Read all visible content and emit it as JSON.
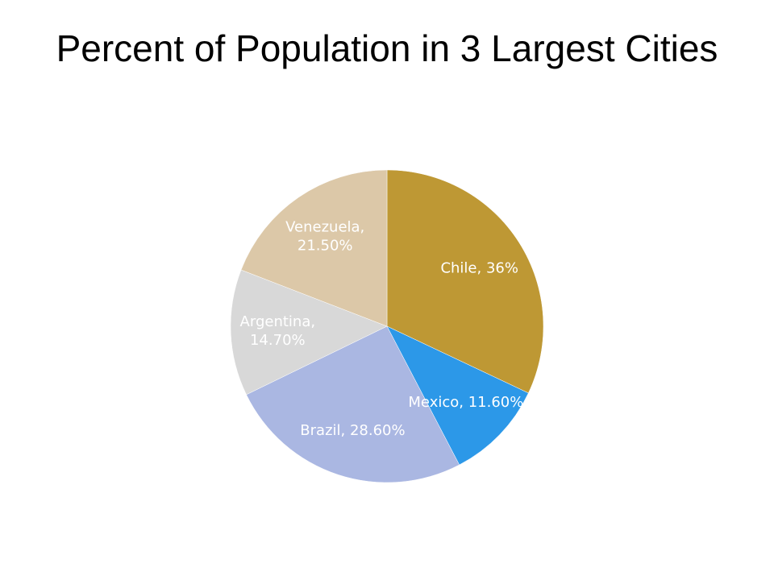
{
  "page": {
    "title": "Percent of Population in 3 Largest Cities"
  },
  "chart_data": {
    "type": "pie",
    "title": "Percent of Population in 3 Largest Cities",
    "slices": [
      {
        "label": "Chile",
        "value": 36,
        "display": "36%",
        "color": "#BE9834",
        "text_color": "#ffffff"
      },
      {
        "label": "Mexico",
        "value": 11.6,
        "display": "11.60%",
        "color": "#2C98E8",
        "text_color": "#ffffff"
      },
      {
        "label": "Brazil",
        "value": 28.6,
        "display": "28.60%",
        "color": "#AAB7E2",
        "text_color": "#ffffff"
      },
      {
        "label": "Argentina",
        "value": 14.7,
        "display": "14.70%",
        "color": "#D8D8D8",
        "text_color": "#ffffff"
      },
      {
        "label": "Venezuela",
        "value": 21.5,
        "display": "21.50%",
        "color": "#DCC8A8",
        "text_color": "#ffffff"
      }
    ],
    "start_angle_deg": 0,
    "direction": "clockwise",
    "label_format": "{label}, {display}",
    "legend": "none"
  }
}
